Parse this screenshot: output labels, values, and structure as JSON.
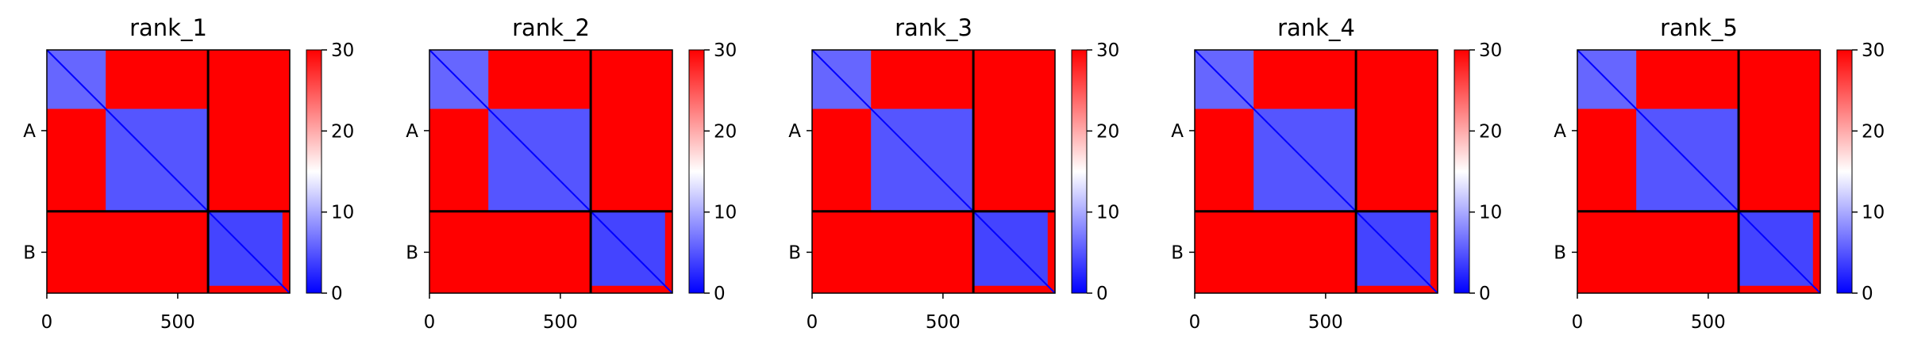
{
  "figure": {
    "panels": [
      {
        "title": "rank_1"
      },
      {
        "title": "rank_2"
      },
      {
        "title": "rank_3"
      },
      {
        "title": "rank_4"
      },
      {
        "title": "rank_5"
      }
    ],
    "chain_labels": [
      "A",
      "B"
    ],
    "x_ticks": [
      "0",
      "500"
    ],
    "colorbar_ticks": [
      "0",
      "10",
      "20",
      "30"
    ],
    "colors": {
      "low": "#0000ff",
      "mid": "#ffffff",
      "high": "#ff0000",
      "divider": "#000000"
    }
  },
  "chart_data": {
    "type": "heatmap",
    "description_values": {
      "x_range": [
        0,
        928
      ],
      "y_range": [
        0,
        928
      ],
      "chain_boundary": 616,
      "chains": [
        {
          "name": "A",
          "range": [
            0,
            616
          ]
        },
        {
          "name": "B",
          "range": [
            616,
            928
          ]
        }
      ],
      "x_tick_values": [
        0,
        500
      ],
      "colorbar_range": [
        0,
        30
      ],
      "colorbar_tick_values": [
        0,
        10,
        20,
        30
      ]
    },
    "panels": [
      "rank_1",
      "rank_2",
      "rank_3",
      "rank_4",
      "rank_5"
    ],
    "low_error_blocks": [
      {
        "range": [
          0,
          225
        ],
        "level": 6
      },
      {
        "range": [
          225,
          616
        ],
        "level": 5
      },
      {
        "range": [
          616,
          900
        ],
        "level": 4
      }
    ],
    "background_level": 30
  }
}
